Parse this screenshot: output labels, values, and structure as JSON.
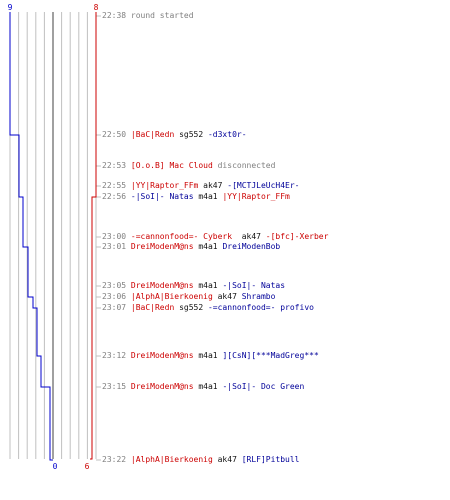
{
  "chart_data": {
    "type": "line",
    "title": "",
    "xlabel": "",
    "ylabel": "",
    "blue_team": {
      "color": "#0000cc",
      "start_label": "9",
      "end_label": "0",
      "alive_after_event": [
        9,
        9,
        9,
        9,
        8,
        8,
        8,
        7,
        7,
        6,
        5,
        5,
        4,
        3,
        2,
        0
      ]
    },
    "red_team": {
      "color": "#cc0000",
      "start_label": "8",
      "end_label": "6",
      "alive_after_event": [
        8,
        8,
        8,
        8,
        8,
        8,
        7,
        7,
        7,
        7,
        7,
        7,
        7,
        7,
        6,
        6
      ]
    },
    "max_players": 9,
    "grid": true,
    "columns": 10,
    "grid_color": "#c0c0c0",
    "center_line_color": "#808080"
  },
  "events": [
    {
      "time": "22:38",
      "parts": [
        {
          "text": "round started",
          "c": "t"
        }
      ]
    },
    {
      "time": "22:50",
      "parts": [
        {
          "text": "|BaC|Redn",
          "c": "red"
        },
        {
          "text": " sg552 ",
          "c": "dark"
        },
        {
          "text": "-d3xt0r-",
          "c": "blue"
        }
      ]
    },
    {
      "time": "22:53",
      "parts": [
        {
          "text": "[O.o.B] Mac Cloud",
          "c": "red"
        },
        {
          "text": " disconnected",
          "c": "t"
        }
      ]
    },
    {
      "time": "22:55",
      "parts": [
        {
          "text": "|YY|Raptor_FFm",
          "c": "red"
        },
        {
          "text": " ak47 ",
          "c": "dark"
        },
        {
          "text": "-[MCTJLeUcH4Er-",
          "c": "blue"
        }
      ]
    },
    {
      "time": "22:56",
      "parts": [
        {
          "text": "-|SoI|- Natas",
          "c": "blue"
        },
        {
          "text": " m4a1 ",
          "c": "dark"
        },
        {
          "text": "|YY|Raptor_FFm",
          "c": "red"
        }
      ]
    },
    {
      "time": "23:00",
      "parts": [
        {
          "text": "-=cannonfood=- Cyberk",
          "c": "red"
        },
        {
          "text": "  ak47 ",
          "c": "dark"
        },
        {
          "text": "-[bfc]-Xerber",
          "c": "red"
        }
      ]
    },
    {
      "time": "23:01",
      "parts": [
        {
          "text": "DreiModenM@ns",
          "c": "red"
        },
        {
          "text": " m4a1 ",
          "c": "dark"
        },
        {
          "text": "DreiModenBob",
          "c": "blue"
        }
      ]
    },
    {
      "time": "23:05",
      "parts": [
        {
          "text": "DreiModenM@ns",
          "c": "red"
        },
        {
          "text": " m4a1 ",
          "c": "dark"
        },
        {
          "text": "-|SoI|- Natas",
          "c": "blue"
        }
      ]
    },
    {
      "time": "23:06",
      "parts": [
        {
          "text": "|AlphA|Bierkoenig",
          "c": "red"
        },
        {
          "text": " ak47 ",
          "c": "dark"
        },
        {
          "text": "Shrambo",
          "c": "blue"
        }
      ]
    },
    {
      "time": "23:07",
      "parts": [
        {
          "text": "|BaC|Redn",
          "c": "red"
        },
        {
          "text": " sg552 ",
          "c": "dark"
        },
        {
          "text": "-=cannonfood=- profivo",
          "c": "blue"
        }
      ]
    },
    {
      "time": "23:12",
      "parts": [
        {
          "text": "DreiModenM@ns",
          "c": "red"
        },
        {
          "text": " m4a1 ",
          "c": "dark"
        },
        {
          "text": "][CsN][***MadGreg***",
          "c": "blue"
        }
      ]
    },
    {
      "time": "23:15",
      "parts": [
        {
          "text": "DreiModenM@ns",
          "c": "red"
        },
        {
          "text": " m4a1 ",
          "c": "dark"
        },
        {
          "text": "-|SoI|- Doc Green",
          "c": "blue"
        }
      ]
    },
    {
      "time": "23:22",
      "parts": [
        {
          "text": "|AlphA|Bierkoenig",
          "c": "red"
        },
        {
          "text": " ak47 ",
          "c": "dark"
        },
        {
          "text": "[RLF]Pitbull",
          "c": "blue"
        }
      ]
    }
  ]
}
